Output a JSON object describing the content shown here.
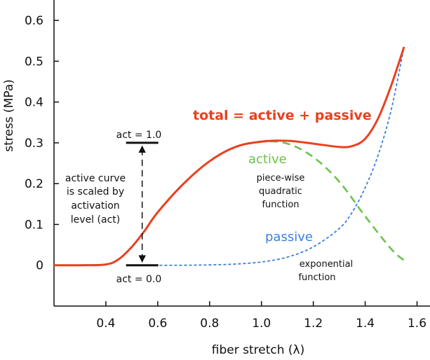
{
  "chart_data": {
    "type": "line",
    "xlabel": "fiber stretch (λ)",
    "ylabel": "stress (MPa)",
    "xlim": [
      0.2,
      1.65
    ],
    "ylim": [
      -0.1,
      0.65
    ],
    "xticks": [
      "0.4",
      "0.6",
      "0.8",
      "1.0",
      "1.2",
      "1.4",
      "1.6"
    ],
    "xtick_values": [
      0.4,
      0.6,
      0.8,
      1.0,
      1.2,
      1.4,
      1.6
    ],
    "yticks": [
      "0",
      "0.1",
      "0.2",
      "0.3",
      "0.4",
      "0.5",
      "0.6"
    ],
    "ytick_values": [
      0,
      0.1,
      0.2,
      0.3,
      0.4,
      0.5,
      0.6
    ],
    "grid": false,
    "series": [
      {
        "name": "total = active + passive",
        "color": "#e8411f",
        "style": "solid",
        "x": [
          0.2,
          0.3,
          0.4,
          0.45,
          0.5,
          0.55,
          0.6,
          0.7,
          0.8,
          0.9,
          1.0,
          1.1,
          1.2,
          1.3,
          1.35,
          1.4,
          1.45,
          1.5,
          1.55
        ],
        "y": [
          0.0,
          0.0,
          0.002,
          0.015,
          0.045,
          0.085,
          0.13,
          0.2,
          0.255,
          0.29,
          0.303,
          0.305,
          0.298,
          0.29,
          0.292,
          0.31,
          0.36,
          0.44,
          0.535
        ]
      },
      {
        "name": "active",
        "color": "#6cc24a",
        "style": "dashed",
        "x": [
          0.2,
          0.3,
          0.4,
          0.45,
          0.5,
          0.55,
          0.6,
          0.7,
          0.8,
          0.9,
          1.0,
          1.1,
          1.2,
          1.3,
          1.4,
          1.5,
          1.55
        ],
        "y": [
          0.0,
          0.0,
          0.002,
          0.015,
          0.045,
          0.085,
          0.13,
          0.2,
          0.255,
          0.29,
          0.303,
          0.298,
          0.265,
          0.205,
          0.12,
          0.04,
          0.012
        ]
      },
      {
        "name": "passive",
        "color": "#3b7fe0",
        "style": "dotted",
        "x": [
          0.55,
          0.7,
          0.8,
          0.9,
          1.0,
          1.1,
          1.2,
          1.3,
          1.35,
          1.4,
          1.45,
          1.5,
          1.55
        ],
        "y": [
          0.0,
          0.0,
          0.001,
          0.003,
          0.008,
          0.02,
          0.045,
          0.09,
          0.13,
          0.19,
          0.27,
          0.38,
          0.535
        ]
      }
    ],
    "annotations": {
      "total_label": "total = active + passive",
      "active_label": "active",
      "passive_label": "passive",
      "active_function": [
        "piece-wise",
        "quadratic",
        "function"
      ],
      "passive_function": [
        "exponential",
        "function"
      ],
      "act_high": "act = 1.0",
      "act_low": "act = 0.0",
      "scaling_note": [
        "active curve",
        "is scaled by",
        "activation",
        "level (act)"
      ],
      "act_marker_x": 0.54,
      "act_high_y": 0.3,
      "act_low_y": 0.0
    },
    "colors": {
      "total": "#e8411f",
      "active": "#6cc24a",
      "passive": "#3b7fe0",
      "axis": "#111111"
    }
  }
}
